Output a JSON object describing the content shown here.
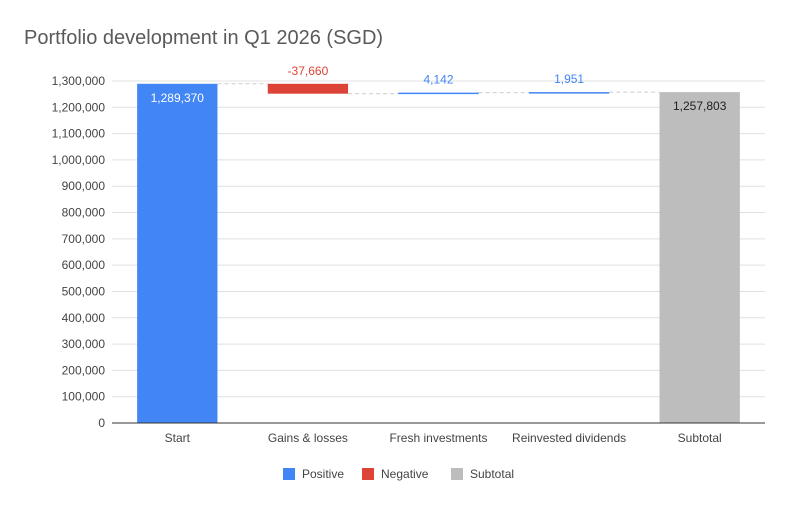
{
  "chart_data": {
    "type": "bar",
    "subtype": "waterfall",
    "title": "Portfolio development in Q1 2026 (SGD)",
    "xlabel": "",
    "ylabel": "",
    "ylim": [
      0,
      1300000
    ],
    "yticks": [
      0,
      100000,
      200000,
      300000,
      400000,
      500000,
      600000,
      700000,
      800000,
      900000,
      1000000,
      1100000,
      1200000,
      1300000
    ],
    "ytick_labels": [
      "0",
      "100,000",
      "200,000",
      "300,000",
      "400,000",
      "500,000",
      "600,000",
      "700,000",
      "800,000",
      "900,000",
      "1,000,000",
      "1,100,000",
      "1,200,000",
      "1,300,000"
    ],
    "grid": true,
    "legend_position": "bottom",
    "categories": [
      "Start",
      "Gains & losses",
      "Fresh investments",
      "Reinvested dividends",
      "Subtotal"
    ],
    "bars": [
      {
        "category": "Start",
        "kind": "positive",
        "start": 0,
        "end": 1289370,
        "label": "1,289,370",
        "label_inside": true
      },
      {
        "category": "Gains & losses",
        "kind": "negative",
        "start": 1289370,
        "end": 1251710,
        "label": "-37,660",
        "label_inside": false
      },
      {
        "category": "Fresh investments",
        "kind": "positive",
        "start": 1251710,
        "end": 1255852,
        "label": "4,142",
        "label_inside": false
      },
      {
        "category": "Reinvested dividends",
        "kind": "positive",
        "start": 1255852,
        "end": 1257803,
        "label": "1,951",
        "label_inside": false
      },
      {
        "category": "Subtotal",
        "kind": "subtotal",
        "start": 0,
        "end": 1257803,
        "label": "1,257,803",
        "label_inside": true
      }
    ],
    "legend": [
      {
        "key": "positive",
        "label": "Positive"
      },
      {
        "key": "negative",
        "label": "Negative"
      },
      {
        "key": "subtotal",
        "label": "Subtotal"
      }
    ],
    "colors": {
      "positive": "#4285f4",
      "negative": "#db4437",
      "subtotal": "#bdbdbd",
      "positive_label": "#4285f4",
      "negative_label": "#db4437",
      "inside_label_positive": "#ffffff",
      "inside_label_subtotal": "#212121",
      "grid": "#e0e0e0",
      "axis": "#333333",
      "tick_text": "#444444",
      "title": "#5a5a5a",
      "connector": "#cccccc"
    }
  }
}
